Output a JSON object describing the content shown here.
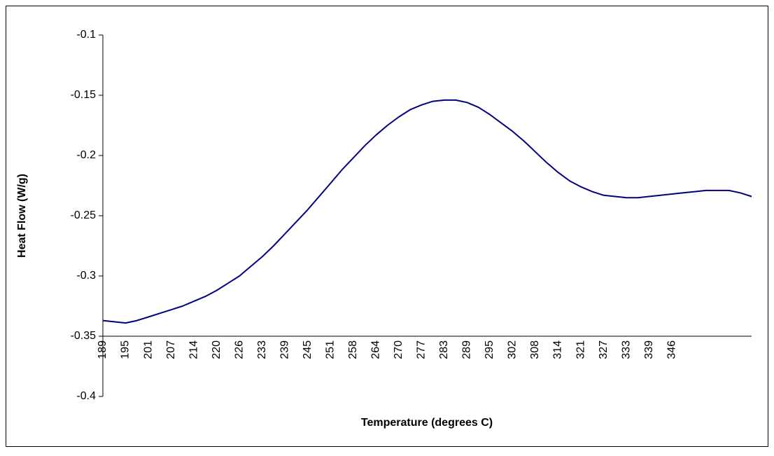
{
  "chart_data": {
    "type": "line",
    "x_label": "Temperature (degrees C)",
    "y_label": "Heat Flow (W/g)",
    "categories": [
      "189",
      null,
      "195",
      null,
      "201",
      null,
      "207",
      null,
      "214",
      null,
      "220",
      null,
      "226",
      null,
      "233",
      null,
      "239",
      null,
      "245",
      null,
      "251",
      null,
      "258",
      null,
      "264",
      null,
      "270",
      null,
      "277",
      null,
      "283",
      null,
      "289",
      null,
      "295",
      null,
      "302",
      null,
      "308",
      null,
      "314",
      null,
      "321",
      null,
      "327",
      null,
      "333",
      null,
      "339",
      null,
      "346",
      null,
      null,
      null,
      null,
      null,
      null,
      null
    ],
    "series": [
      {
        "color": "#000080",
        "values": [
          -0.337,
          -0.338,
          -0.339,
          -0.337,
          -0.334,
          -0.331,
          -0.328,
          -0.325,
          -0.321,
          -0.317,
          -0.312,
          -0.306,
          -0.3,
          -0.292,
          -0.284,
          -0.275,
          -0.265,
          -0.255,
          -0.245,
          -0.234,
          -0.223,
          -0.212,
          -0.202,
          -0.192,
          -0.183,
          -0.175,
          -0.168,
          -0.162,
          -0.158,
          -0.155,
          -0.154,
          -0.154,
          -0.156,
          -0.16,
          -0.166,
          -0.173,
          -0.18,
          -0.188,
          -0.197,
          -0.206,
          -0.214,
          -0.221,
          -0.226,
          -0.23,
          -0.233,
          -0.234,
          -0.235,
          -0.235,
          -0.234,
          -0.233,
          -0.232,
          -0.231,
          -0.23,
          -0.229,
          -0.229,
          -0.229,
          -0.231,
          -0.234
        ]
      }
    ],
    "ylim": [
      -0.4,
      -0.1
    ],
    "yticks": [
      -0.4,
      -0.35,
      -0.3,
      -0.25,
      -0.2,
      -0.15,
      -0.1
    ],
    "x_axis_at": -0.35
  }
}
